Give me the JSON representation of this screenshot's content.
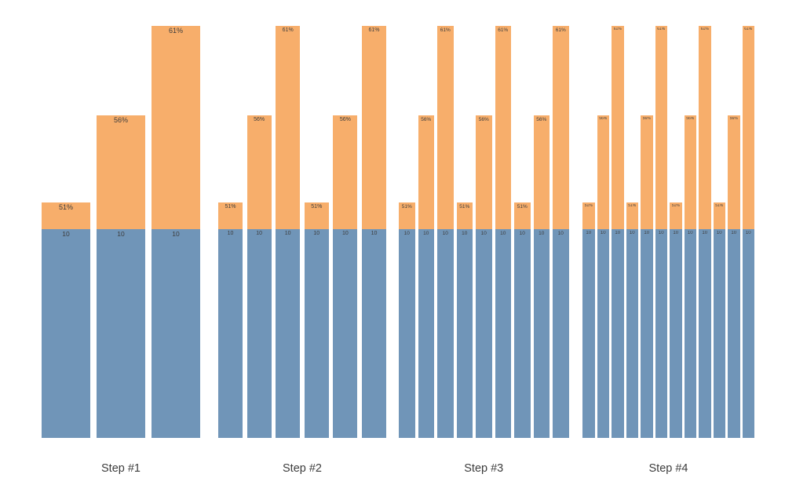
{
  "chart_data": {
    "type": "bar",
    "subtype": "stacked",
    "title": "",
    "xlabel": "",
    "ylabel": "",
    "legend": "none",
    "grid": false,
    "axes_visible": false,
    "panels": [
      {
        "label": "Step #1",
        "bar_count": 3
      },
      {
        "label": "Step #2",
        "bar_count": 6
      },
      {
        "label": "Step #3",
        "bar_count": 9
      },
      {
        "label": "Step #4",
        "bar_count": 12
      }
    ],
    "bar_pattern": [
      {
        "top_label": "51%",
        "top_value": 1.28
      },
      {
        "top_label": "56%",
        "top_value": 5.45
      },
      {
        "top_label": "61%",
        "top_value": 9.73
      }
    ],
    "base_segment": {
      "label": "10",
      "value": 10
    },
    "colors": {
      "top_segment": "#F7AE6B",
      "base_segment": "#7095B8",
      "segment_label": "#3D3D3D",
      "x_label": "#3C3C3C",
      "background": "#FFFFFF"
    }
  }
}
